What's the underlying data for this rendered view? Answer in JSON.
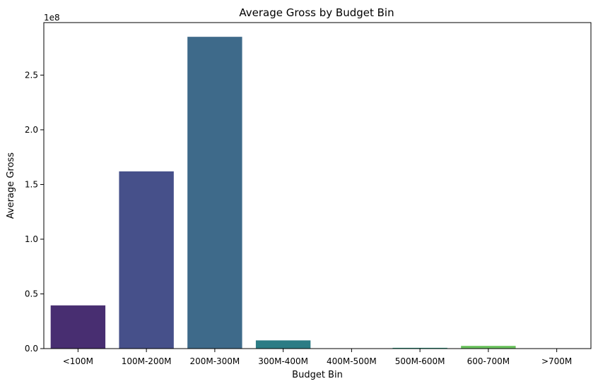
{
  "chart_data": {
    "type": "bar",
    "title": "Average Gross by Budget Bin",
    "xlabel": "Budget Bin",
    "ylabel": "Average Gross",
    "offset_label": "1e8",
    "categories": [
      "<100M",
      "100M-200M",
      "200M-300M",
      "300M-400M",
      "400M-500M",
      "500M-600M",
      "600-700M",
      ">700M"
    ],
    "values": [
      39500000,
      162000000,
      285000000,
      7500000,
      0,
      700000,
      2500000,
      0
    ],
    "colors": [
      "#482e71",
      "#46508a",
      "#3e6a8a",
      "#2c7c85",
      "#21918c",
      "#20a386",
      "#6bc25e",
      "#b5de2b"
    ],
    "ylim": [
      0,
      298000000
    ],
    "yticks": [
      0,
      50000000,
      100000000,
      150000000,
      200000000,
      250000000
    ],
    "ytick_labels": [
      "0.0",
      "0.5",
      "1.0",
      "1.5",
      "2.0",
      "2.5"
    ],
    "grid": false,
    "legend": "none"
  }
}
